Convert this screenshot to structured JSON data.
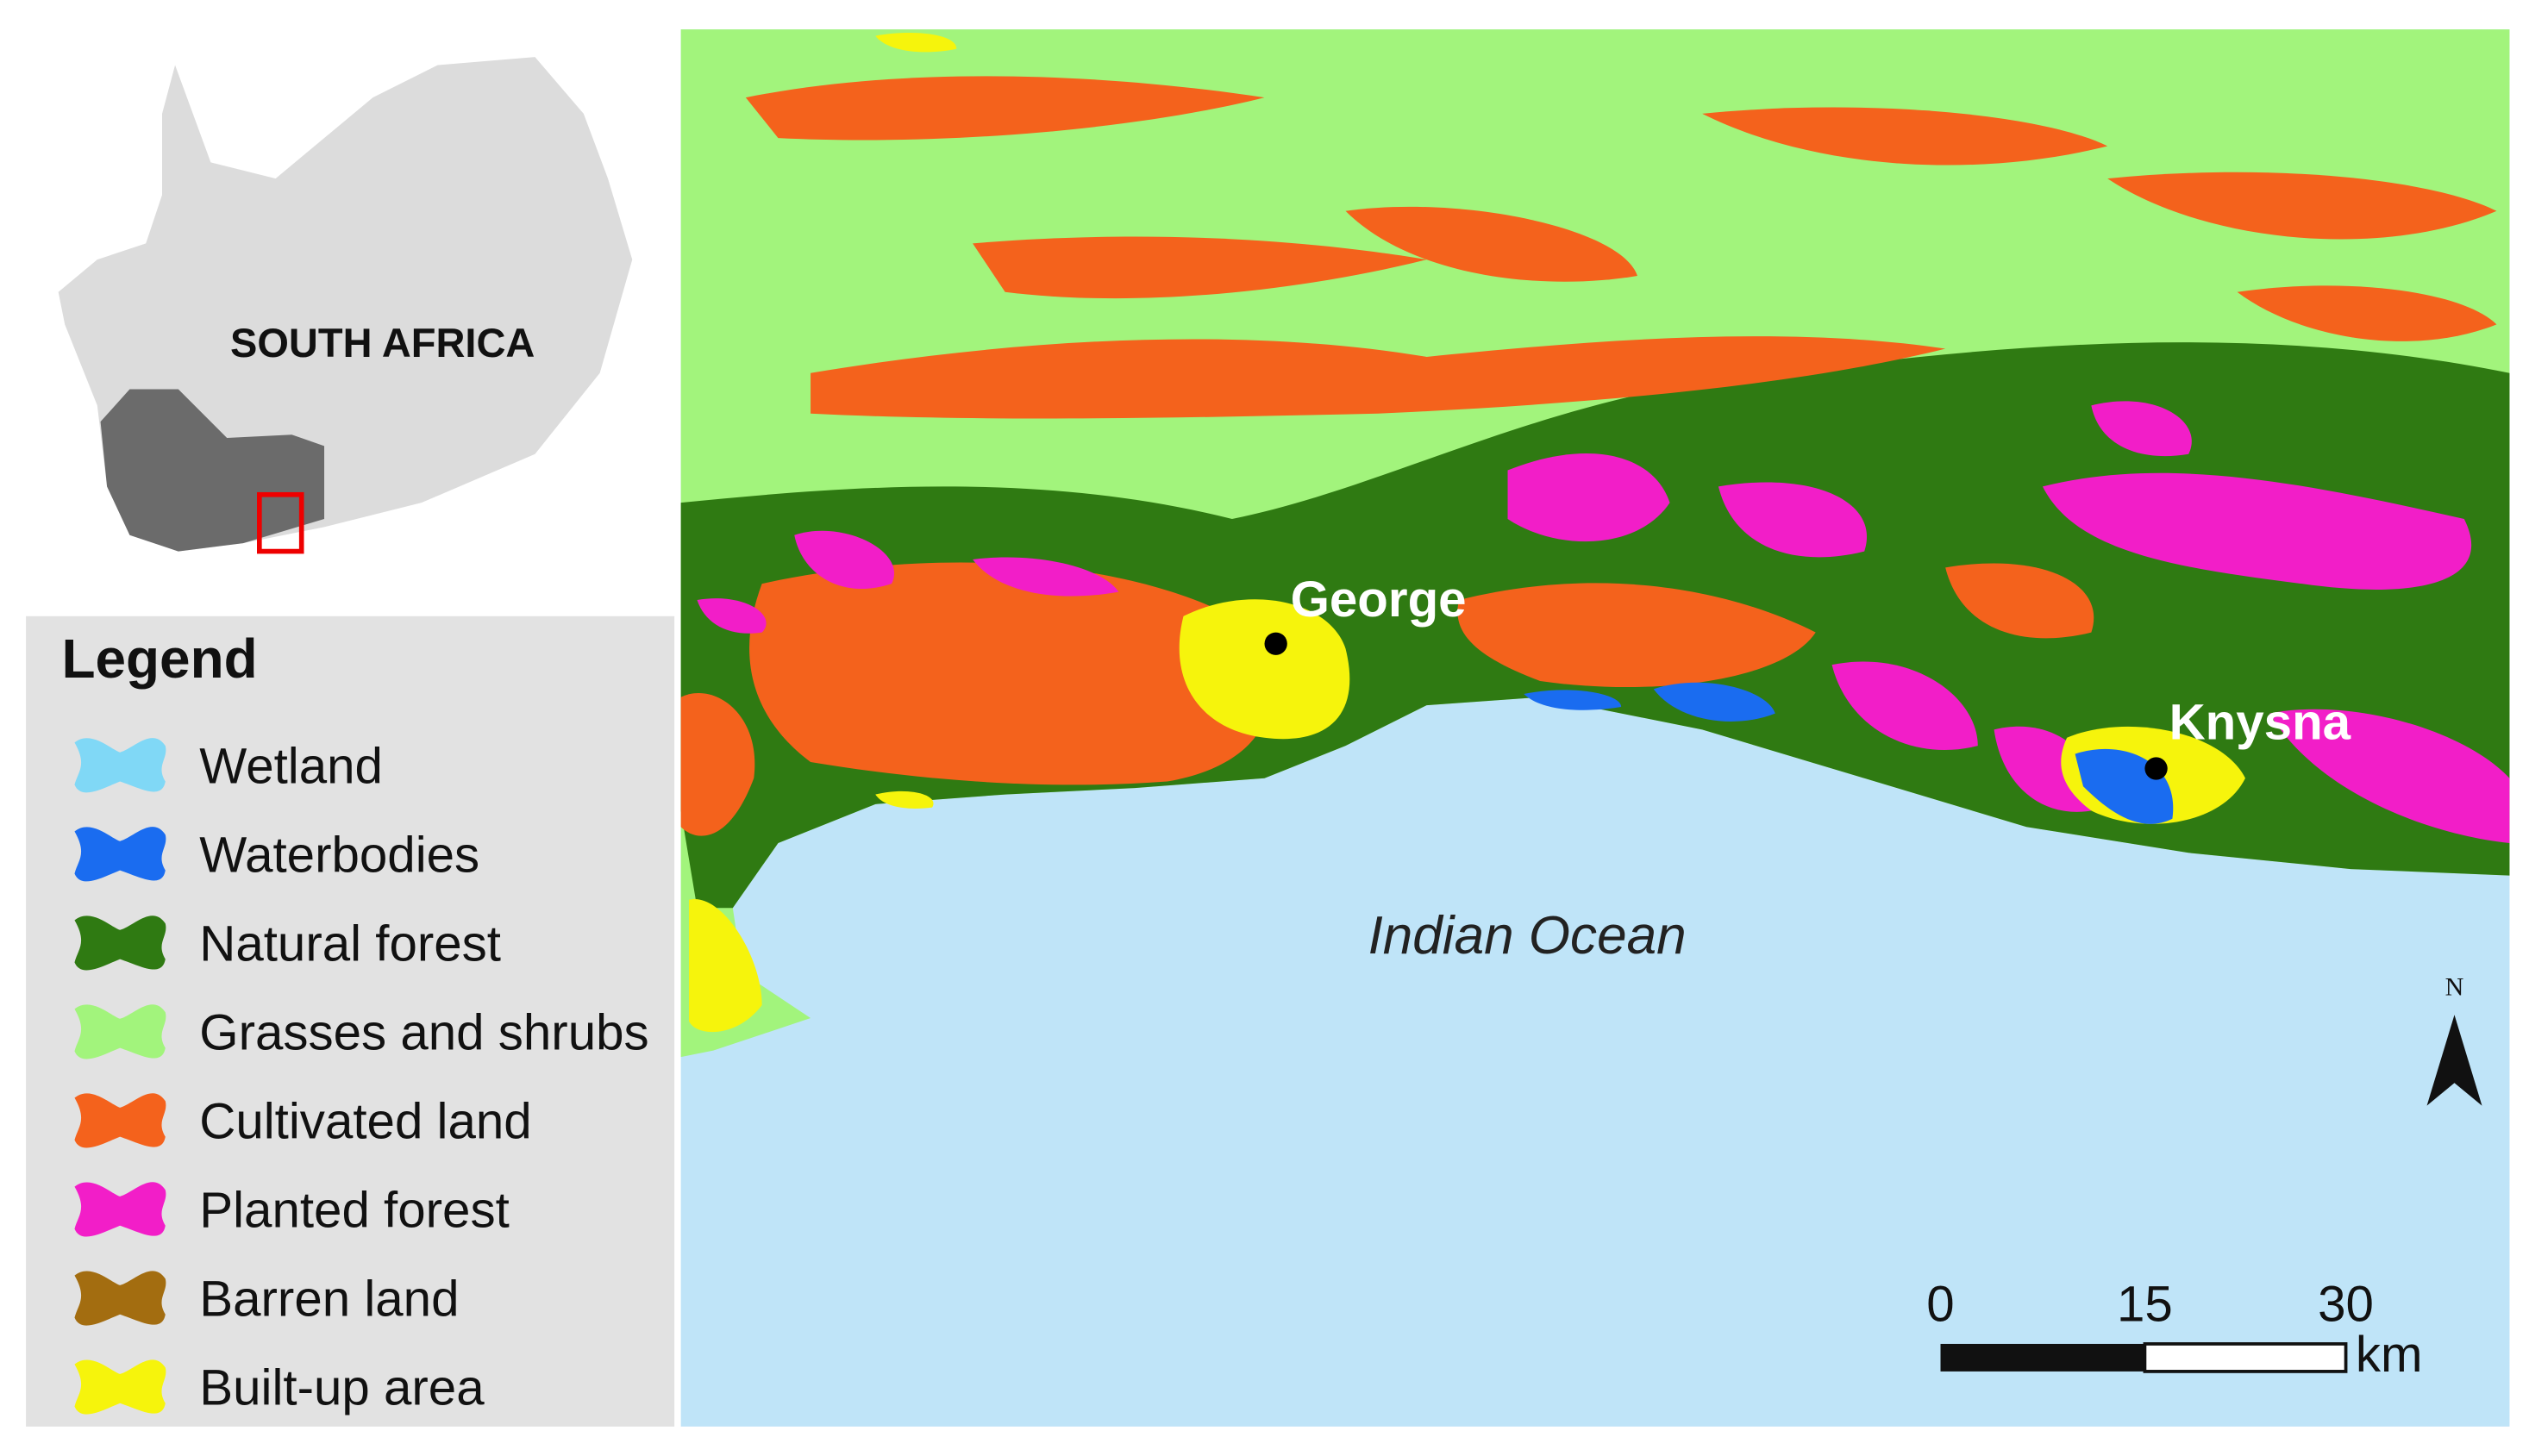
{
  "inset": {
    "country_label": "SOUTH AFRICA"
  },
  "legend": {
    "title": "Legend",
    "items": [
      {
        "label": "Wetland",
        "color": "#80d8f6"
      },
      {
        "label": "Waterbodies",
        "color": "#1a6cf0"
      },
      {
        "label": "Natural forest",
        "color": "#2f7a12"
      },
      {
        "label": "Grasses and shrubs",
        "color": "#a2f47c"
      },
      {
        "label": "Cultivated land",
        "color": "#f4621c"
      },
      {
        "label": "Planted forest",
        "color": "#f21ec8"
      },
      {
        "label": "Barren land",
        "color": "#a36d10"
      },
      {
        "label": "Built-up area",
        "color": "#f6f40c"
      }
    ]
  },
  "map": {
    "places": [
      "George",
      "Knysna"
    ],
    "sea_label": "Indian Ocean",
    "north": "N",
    "scale_bar": {
      "labels": [
        "0",
        "15",
        "30"
      ],
      "unit": "km"
    }
  }
}
